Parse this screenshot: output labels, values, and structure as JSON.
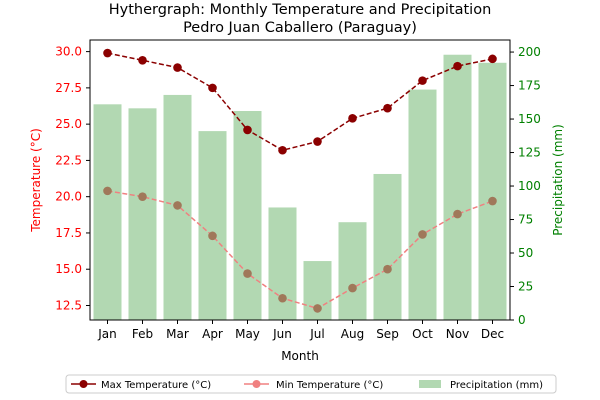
{
  "chart_data": {
    "type": "bar+line",
    "title": "Hythergraph: Monthly Temperature and Precipitation",
    "subtitle": "Pedro Juan Caballero (Paraguay)",
    "xlabel": "Month",
    "ylabel_left": "Temperature (°C)",
    "ylabel_right": "Precipitation (mm)",
    "categories": [
      "Jan",
      "Feb",
      "Mar",
      "Apr",
      "May",
      "Jun",
      "Jul",
      "Aug",
      "Sep",
      "Oct",
      "Nov",
      "Dec"
    ],
    "ylim_left": [
      11.5,
      30.8
    ],
    "ylim_right": [
      0,
      209
    ],
    "yticks_left": [
      "12.5",
      "15.0",
      "17.5",
      "20.0",
      "22.5",
      "25.0",
      "27.5",
      "30.0"
    ],
    "yticks_right": [
      "0",
      "25",
      "50",
      "75",
      "100",
      "125",
      "150",
      "175",
      "200"
    ],
    "legend_position": "bottom",
    "series": [
      {
        "name": "Max Temperature (°C)",
        "type": "line",
        "axis": "left",
        "color": "#8b0000",
        "values": [
          29.9,
          29.4,
          28.9,
          27.5,
          24.6,
          23.2,
          23.8,
          25.4,
          26.1,
          28.0,
          29.0,
          29.5
        ]
      },
      {
        "name": "Min Temperature (°C)",
        "type": "line",
        "axis": "left",
        "color": "#f08080",
        "values": [
          20.4,
          20.0,
          19.4,
          17.3,
          14.7,
          13.0,
          12.3,
          13.7,
          15.0,
          17.4,
          18.8,
          19.7
        ]
      },
      {
        "name": "Precipitation (mm)",
        "type": "bar",
        "axis": "right",
        "color": "#b2d8b2",
        "values": [
          161,
          158,
          168,
          141,
          156,
          84,
          44,
          73,
          109,
          172,
          198,
          192
        ]
      }
    ],
    "colors": {
      "left_axis": "#ff0000",
      "right_axis": "#008000",
      "min_marker": "#a0785a"
    }
  }
}
